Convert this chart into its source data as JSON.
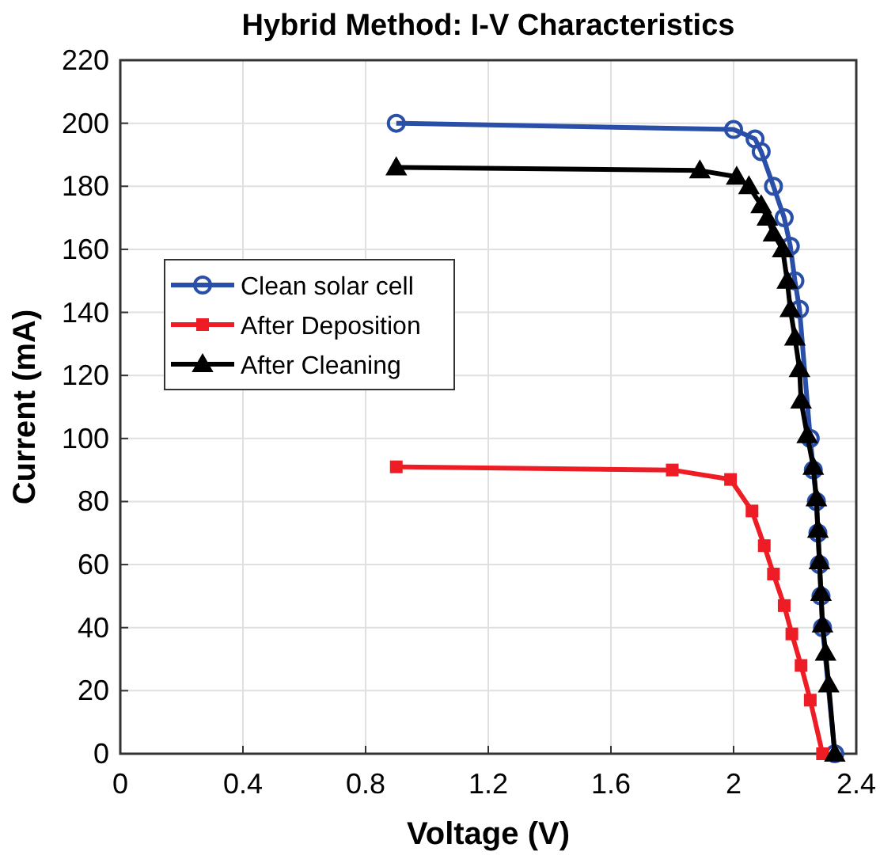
{
  "chart_data": {
    "type": "line",
    "title": "Hybrid Method: I-V Characteristics",
    "xlabel": "Voltage (V)",
    "ylabel": "Current (mA)",
    "xlim": [
      0,
      2.4
    ],
    "xticks": [
      0,
      0.4,
      0.8,
      1.2,
      1.6,
      2,
      2.4
    ],
    "ylim": [
      0,
      220
    ],
    "yticks": [
      0,
      20,
      40,
      60,
      80,
      100,
      120,
      140,
      160,
      180,
      200,
      220
    ],
    "grid": true,
    "legend": "left",
    "series": [
      {
        "name": "Clean solar cell",
        "color": "#2a4fa8",
        "marker": "circle",
        "x": [
          0.9,
          2.0,
          2.07,
          2.09,
          2.13,
          2.165,
          2.185,
          2.2,
          2.215,
          2.225,
          2.24,
          2.25,
          2.26,
          2.27,
          2.275,
          2.28,
          2.285,
          2.29,
          2.3,
          2.31,
          2.33
        ],
        "values": [
          200,
          198,
          195,
          191,
          180,
          170,
          161,
          150,
          141,
          null,
          null,
          100,
          90,
          80,
          70,
          60,
          50,
          40,
          null,
          null,
          0
        ]
      },
      {
        "name": "After Deposition",
        "color": "#ee1c25",
        "marker": "square",
        "x": [
          0.9,
          1.8,
          1.99,
          2.06,
          2.1,
          2.13,
          2.165,
          2.19,
          2.22,
          2.25,
          2.29
        ],
        "values": [
          91,
          90,
          87,
          77,
          66,
          57,
          47,
          38,
          28,
          17,
          0
        ]
      },
      {
        "name": "After Cleaning",
        "color": "#000000",
        "marker": "triangle",
        "x": [
          0.9,
          1.89,
          2.01,
          2.05,
          2.09,
          2.11,
          2.13,
          2.16,
          2.175,
          2.185,
          2.2,
          2.215,
          2.22,
          2.24,
          2.26,
          2.27,
          2.275,
          2.28,
          2.285,
          2.29,
          2.3,
          2.31,
          2.33
        ],
        "values": [
          186,
          185,
          183,
          180,
          174,
          170,
          165,
          160,
          150,
          141,
          132,
          122,
          112,
          101,
          91,
          81,
          71,
          61,
          51,
          41,
          32,
          22,
          0
        ]
      }
    ]
  }
}
